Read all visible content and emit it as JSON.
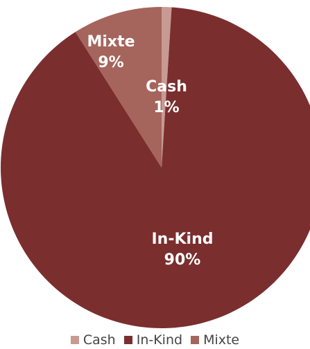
{
  "chart_data": {
    "type": "pie",
    "title": "",
    "slices": [
      {
        "name": "Cash",
        "value": 1,
        "label_name": "Cash",
        "label_value": "1%",
        "color": "#C79A92"
      },
      {
        "name": "In-Kind",
        "value": 90,
        "label_name": "In-Kind",
        "label_value": "90%",
        "color": "#7B2E2E"
      },
      {
        "name": "Mixte",
        "value": 9,
        "label_name": "Mixte",
        "label_value": "9%",
        "color": "#A5655C"
      }
    ],
    "legend": {
      "placement": "bottom",
      "entries": [
        "Cash",
        "In-Kind",
        "Mixte"
      ]
    }
  }
}
